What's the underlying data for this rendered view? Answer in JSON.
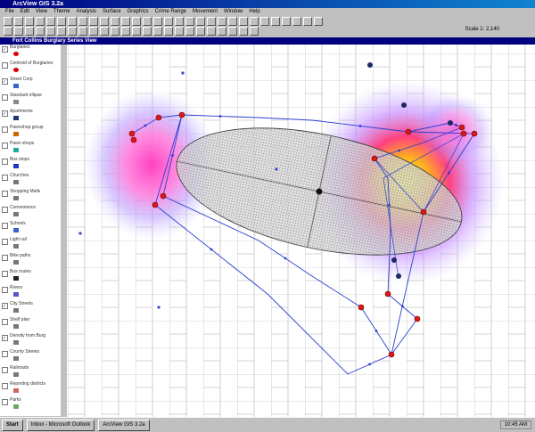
{
  "window": {
    "title": "ArcView GIS 3.2a",
    "menu": [
      "File",
      "Edit",
      "View",
      "Theme",
      "Analysis",
      "Surface",
      "Graphics",
      "Crime Range",
      "Movement",
      "Window",
      "Help"
    ]
  },
  "toolbar": {
    "scale_label": "Scale 1: 2,140"
  },
  "view": {
    "title": "Fort Collins Burglary Series View"
  },
  "legend": [
    "Burglaries",
    "Centroid of Burglaries",
    "Street Corp",
    "Standard ellipse",
    "Apartments",
    "Pawnshop group",
    "Pawn shops",
    "Bus stops",
    "Churches",
    "Shopping Malls",
    "Convenience",
    "Schools",
    "Light rail",
    "Bike paths",
    "Bus routes",
    "Rivers",
    "City Streets",
    "Shelf plan",
    "Density from Burg",
    "County Streets",
    "Railroads",
    "Reporting districts",
    "Parks"
  ],
  "taskbar": {
    "start": "Start",
    "items": [
      "Inbox - Microsoft Outlook",
      "ArcView GIS 3.2a"
    ],
    "clock": "10:45 AM"
  }
}
